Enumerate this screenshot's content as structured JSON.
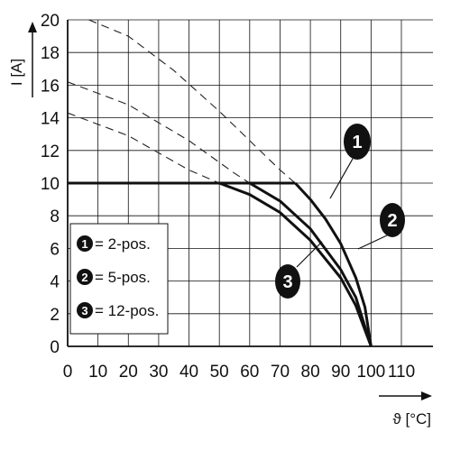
{
  "chart_data": {
    "type": "line",
    "xlabel": "ϑ [°C]",
    "ylabel": "I [A]",
    "xlim": [
      0,
      110
    ],
    "ylim": [
      0,
      20
    ],
    "x_ticks": [
      0,
      10,
      20,
      30,
      40,
      50,
      60,
      70,
      80,
      90,
      100,
      110
    ],
    "y_ticks": [
      0,
      2,
      4,
      6,
      8,
      10,
      12,
      14,
      16,
      18,
      20
    ],
    "grid": true,
    "legend_placement": "bottom-left",
    "rated_current": 10,
    "series": [
      {
        "name": "2-pos.",
        "marker": "1",
        "dashed_x": [
          7,
          20,
          35,
          50,
          60,
          70,
          75
        ],
        "dashed_y": [
          20,
          19.0,
          16.9,
          14.4,
          12.6,
          10.8,
          10.0
        ],
        "solid_x": [
          0,
          75,
          80,
          85,
          90,
          95,
          98,
          100
        ],
        "solid_y": [
          10,
          10,
          9.0,
          7.8,
          6.3,
          4.2,
          2.4,
          0
        ]
      },
      {
        "name": "5-pos.",
        "marker": "2",
        "dashed_x": [
          0,
          20,
          40,
          55,
          60
        ],
        "dashed_y": [
          16.2,
          14.8,
          12.6,
          10.6,
          10.0
        ],
        "solid_x": [
          0,
          60,
          70,
          80,
          90,
          95,
          100
        ],
        "solid_y": [
          10,
          10,
          8.9,
          7.2,
          4.7,
          3.0,
          0
        ]
      },
      {
        "name": "12-pos.",
        "marker": "3",
        "dashed_x": [
          0,
          20,
          40,
          50
        ],
        "dashed_y": [
          14.3,
          12.9,
          10.8,
          10.0
        ],
        "solid_x": [
          0,
          50,
          60,
          70,
          80,
          90,
          95,
          100
        ],
        "solid_y": [
          10,
          10,
          9.3,
          8.2,
          6.5,
          4.2,
          2.5,
          0
        ]
      }
    ],
    "legend": [
      {
        "marker": "1",
        "text": "= 2-pos."
      },
      {
        "marker": "2",
        "text": "= 5-pos."
      },
      {
        "marker": "3",
        "text": "= 12-pos."
      }
    ]
  }
}
